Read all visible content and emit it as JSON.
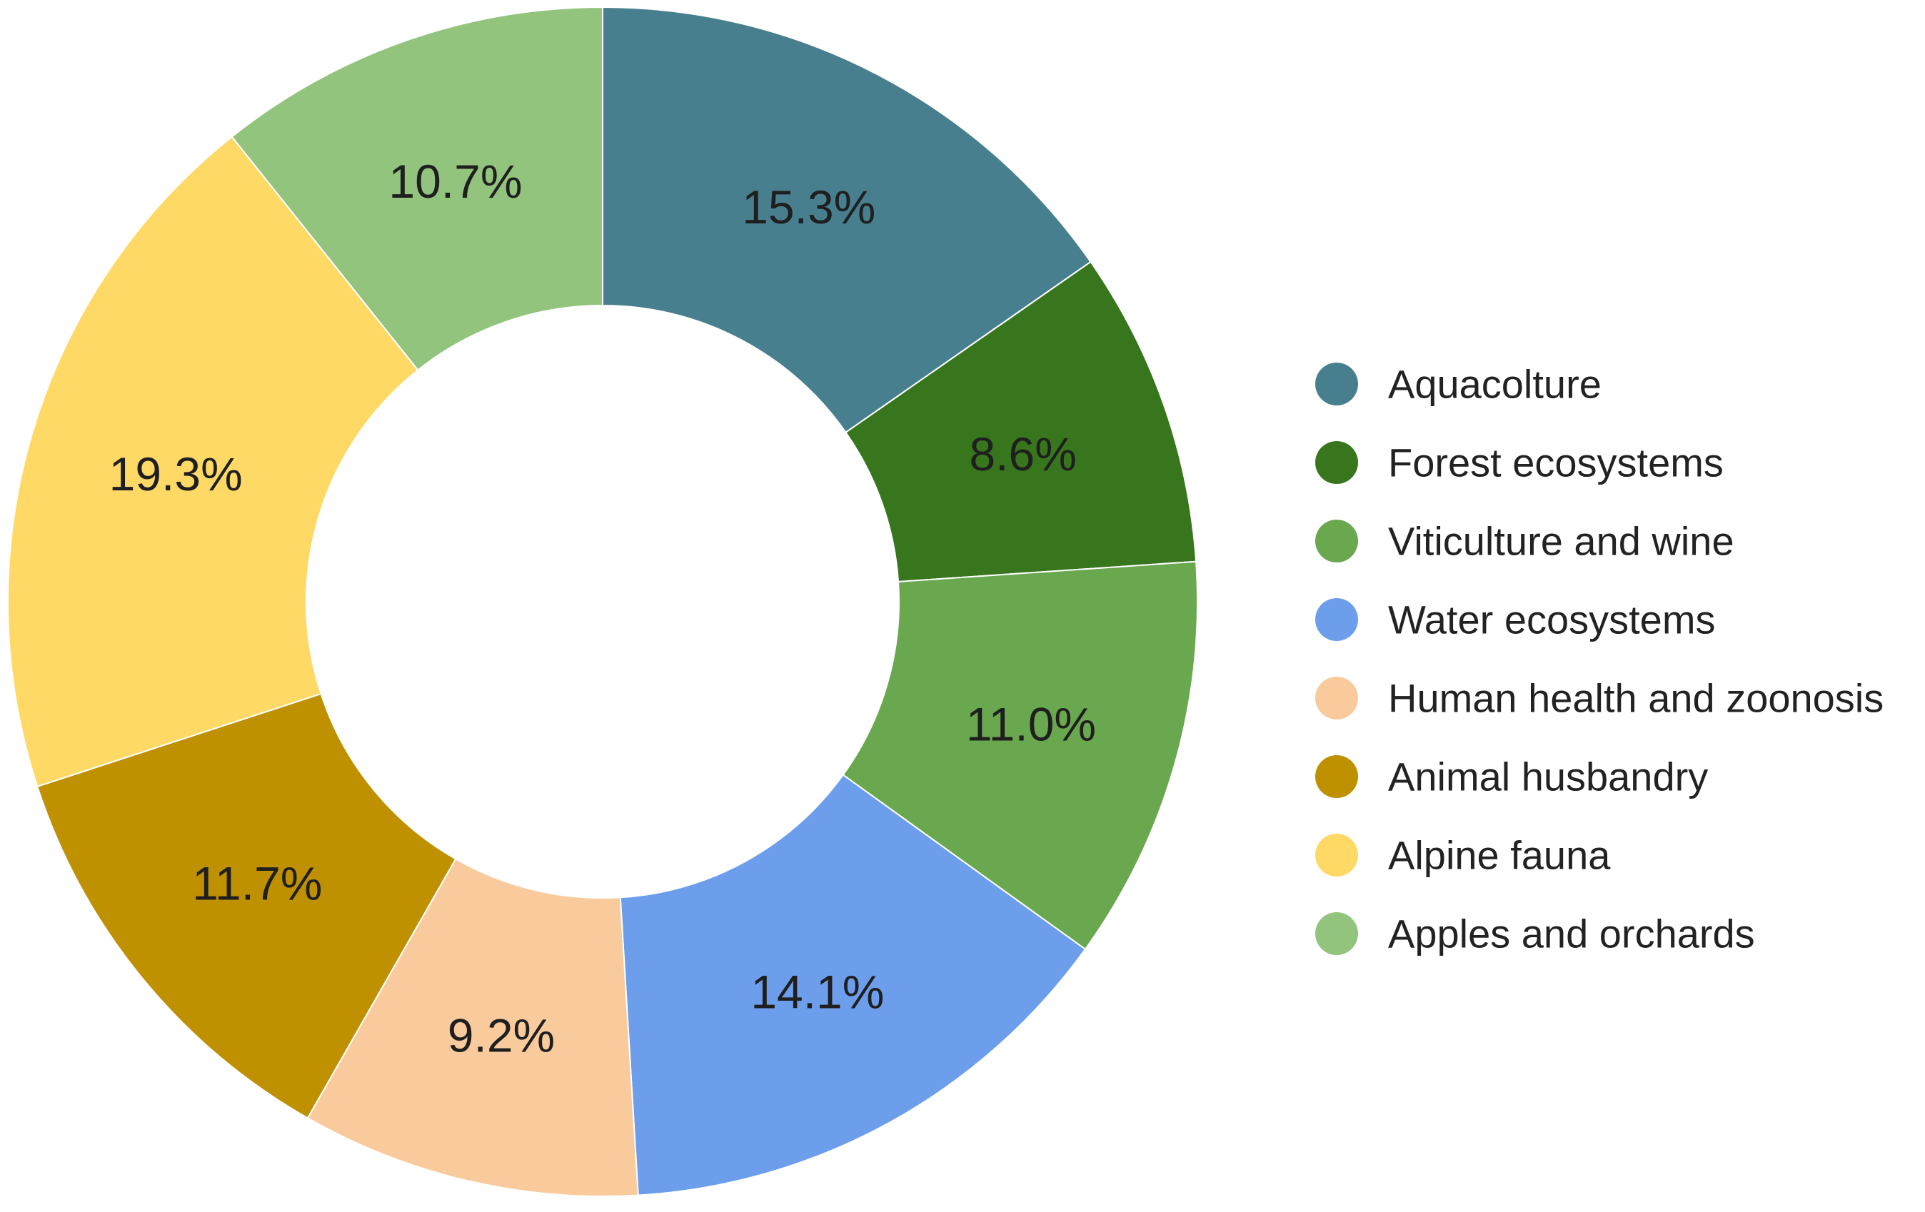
{
  "chart_data": {
    "type": "pie",
    "donut": true,
    "categories": [
      "Aquacolture",
      "Forest ecosystems",
      "Viticulture and wine",
      "Water ecosystems",
      "Human health and zoonosis",
      "Animal husbandry",
      "Alpine fauna",
      "Apples and orchards"
    ],
    "values": [
      15.3,
      8.6,
      11.0,
      14.1,
      9.2,
      11.7,
      19.3,
      10.7
    ],
    "labels": [
      "15.3%",
      "8.6%",
      "11.0%",
      "14.1%",
      "9.2%",
      "11.7%",
      "19.3%",
      "10.7%"
    ],
    "colors": [
      "#477f8e",
      "#38761d",
      "#6aa84f",
      "#6d9eeb",
      "#f9cb9c",
      "#bf9000",
      "#ffd966",
      "#93c47d"
    ],
    "legend_position": "right",
    "start_angle": "12 o'clock, clockwise"
  }
}
